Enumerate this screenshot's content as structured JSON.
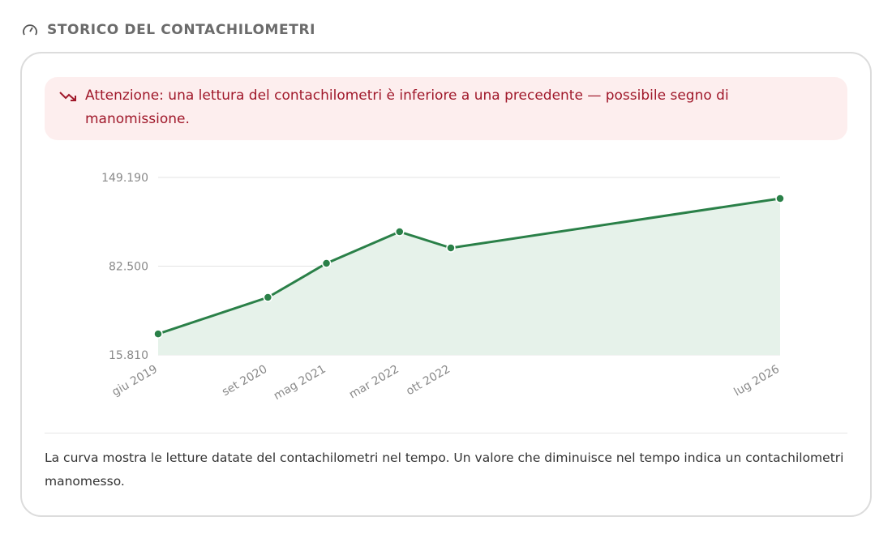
{
  "header": {
    "title": "STORICO DEL CONTACHILOMETRI"
  },
  "warning": {
    "text": "Attenzione: una lettura del contachilometri è inferiore a una precedente — possibile segno di manomissione."
  },
  "chart_data": {
    "type": "line",
    "x": [
      "2019-06",
      "2020-09",
      "2021-05",
      "2022-03",
      "2022-10",
      "2026-07"
    ],
    "series": [
      {
        "color": "#2a8048",
        "values": [
          31600,
          59050,
          84630,
          108380,
          96200,
          133350
        ]
      }
    ],
    "area_color": "#e6f2ea",
    "xlim": [
      "2019-06",
      "2026-07"
    ],
    "xticks": [
      {
        "value": "2019-06",
        "label": "giu 2019"
      },
      {
        "value": "2020-09",
        "label": "set 2020"
      },
      {
        "value": "2021-05",
        "label": "mag 2021"
      },
      {
        "value": "2022-03",
        "label": "mar 2022"
      },
      {
        "value": "2022-10",
        "label": "ott 2022"
      },
      {
        "value": "2026-07",
        "label": "lug 2026"
      }
    ],
    "ylim": [
      15810,
      149190
    ],
    "yticks": [
      {
        "value": 15810,
        "label": "15.810"
      },
      {
        "value": 82500,
        "label": "82.500"
      },
      {
        "value": 149190,
        "label": "149.190"
      }
    ],
    "grid": true
  },
  "footer": {
    "text": "La curva mostra le letture datate del contachilometri nel tempo. Un valore che diminuisce nel tempo indica un contachilometri manomesso."
  }
}
